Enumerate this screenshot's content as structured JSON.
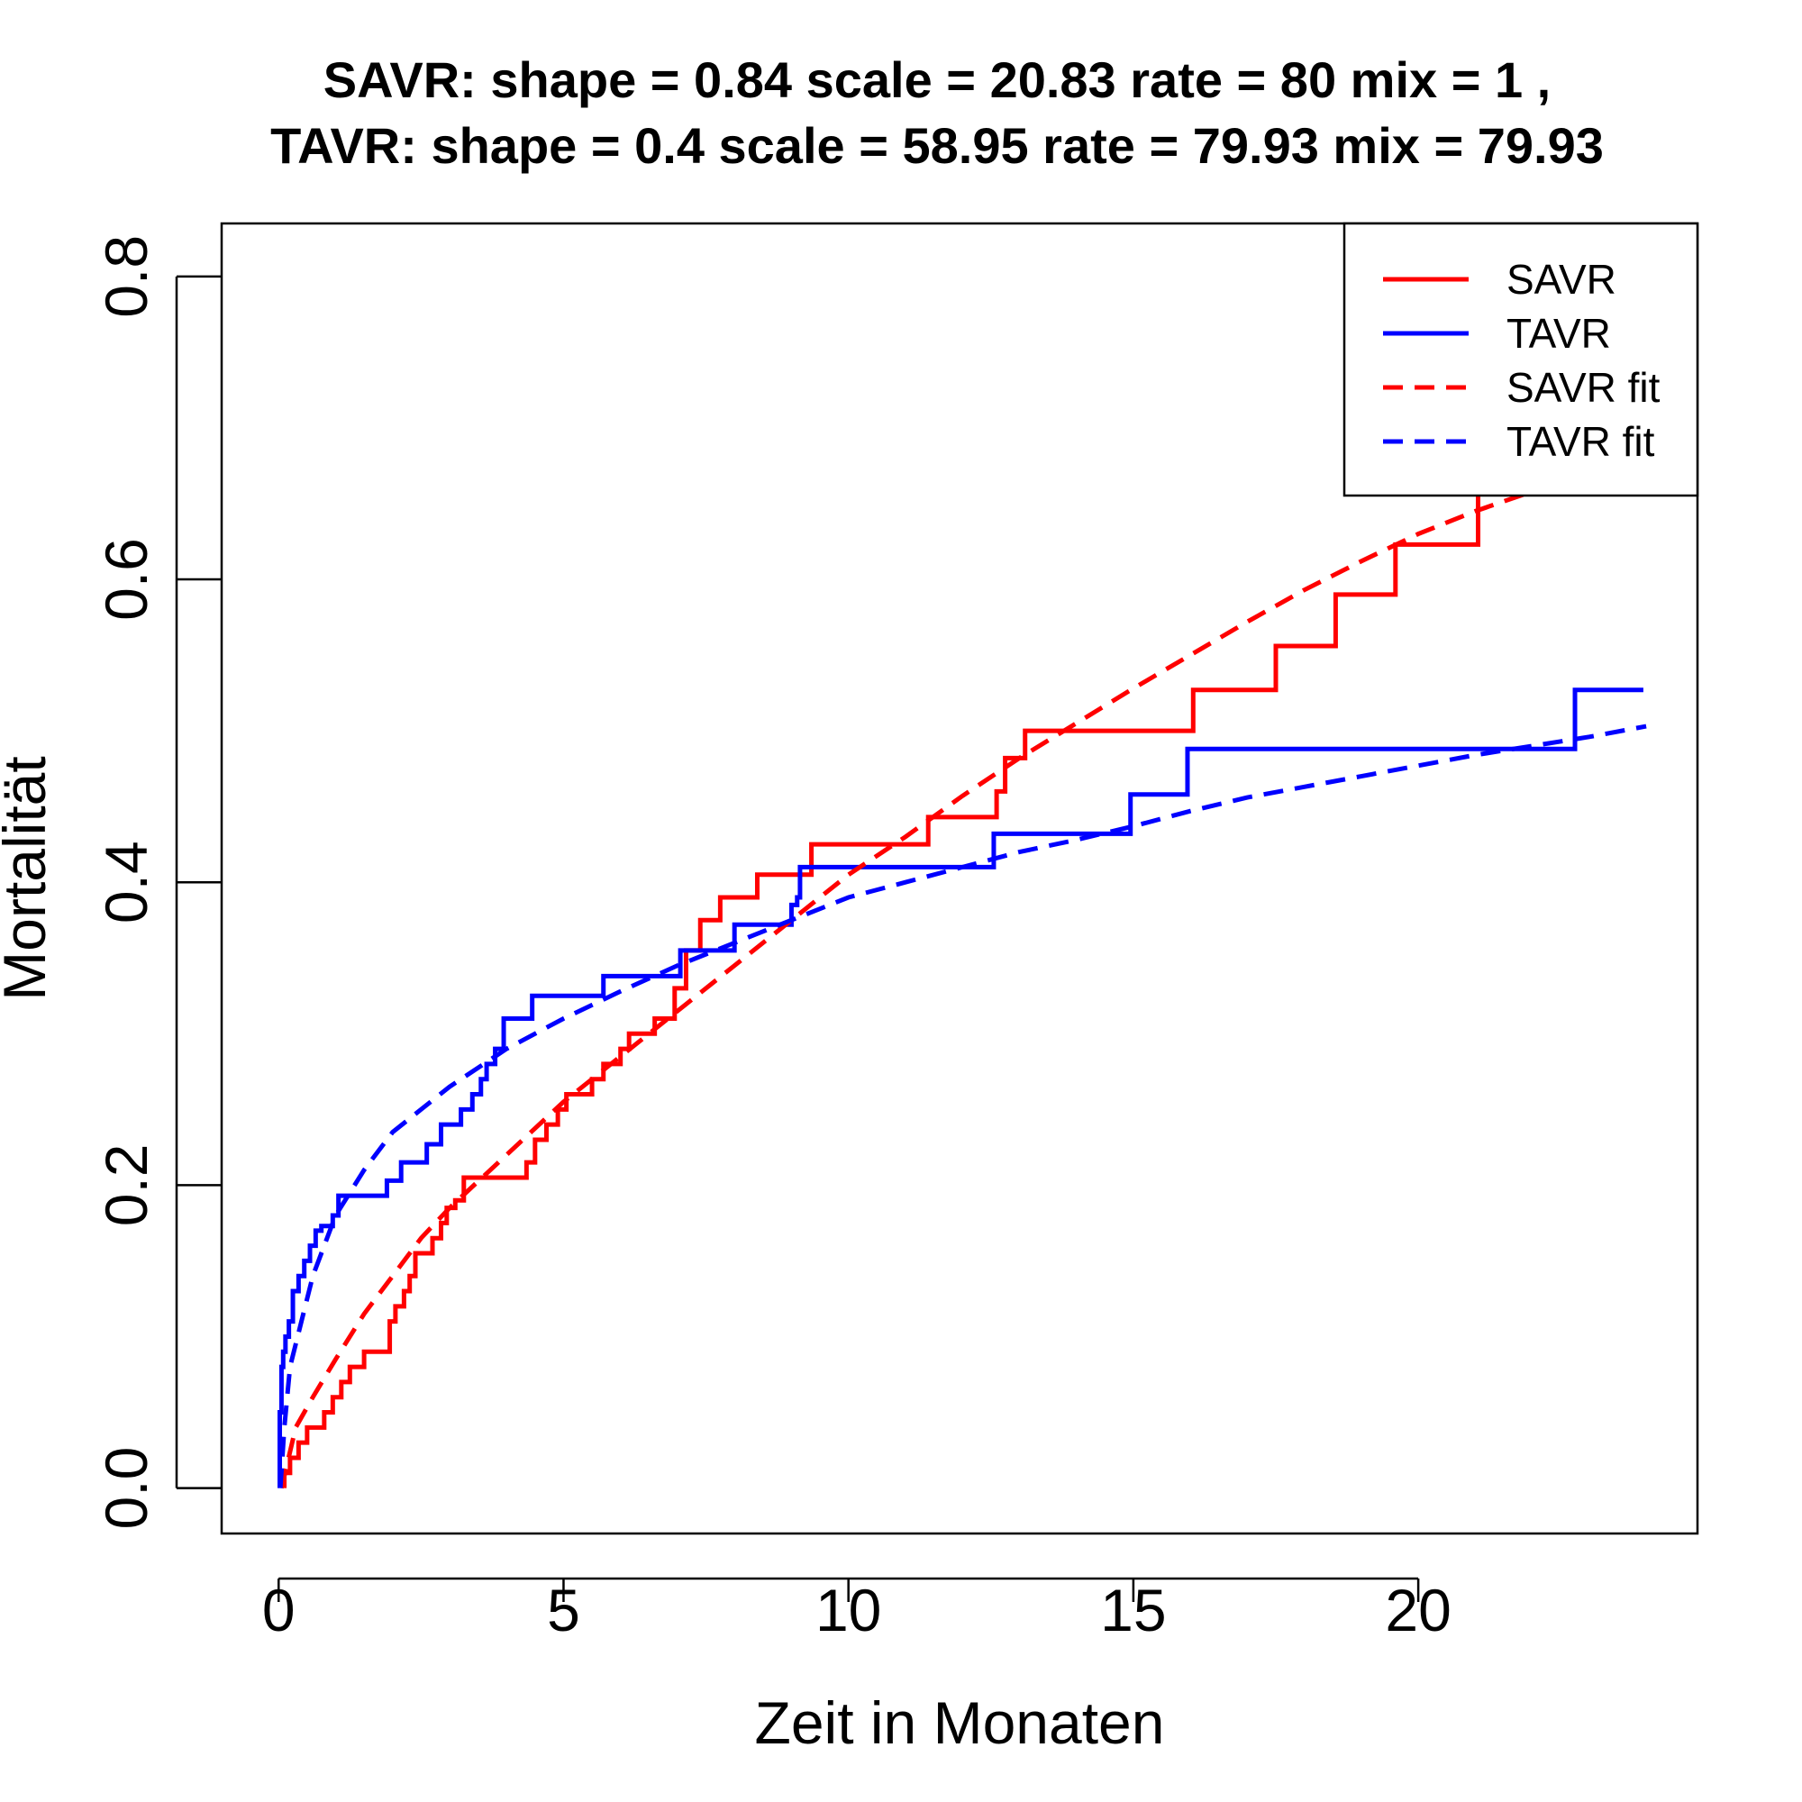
{
  "chart_data": {
    "type": "line",
    "title_line1": "SAVR:  shape =  0.84   scale =  20.83   rate =  80   mix =  1 ,",
    "title_line2": "TAVR:  shape =  0.4   scale =  58.95   rate =  79.93   mix =  79.93",
    "xlabel": "Zeit in Monaten",
    "ylabel": "Mortalität",
    "xlim": [
      -1.0,
      24.9
    ],
    "ylim": [
      -0.03,
      0.835
    ],
    "xticks": [
      0,
      5,
      10,
      15,
      20
    ],
    "xtick_labels": [
      "0",
      "5",
      "10",
      "15",
      "20"
    ],
    "yticks": [
      0.0,
      0.2,
      0.4,
      0.6,
      0.8
    ],
    "ytick_labels": [
      "0.0",
      "0.2",
      "0.4",
      "0.6",
      "0.8"
    ],
    "legend": {
      "position": "top-right",
      "entries": [
        {
          "label": "SAVR",
          "color": "#ff0000",
          "style": "solid"
        },
        {
          "label": "TAVR",
          "color": "#0000ff",
          "style": "solid"
        },
        {
          "label": "SAVR fit",
          "color": "#ff0000",
          "style": "dashed"
        },
        {
          "label": "TAVR fit",
          "color": "#0000ff",
          "style": "dashed"
        }
      ]
    },
    "series": [
      {
        "name": "SAVR",
        "color": "#ff0000",
        "style": "step",
        "x": [
          0.1,
          0.2,
          0.35,
          0.5,
          0.6,
          0.8,
          0.95,
          1.1,
          1.25,
          1.4,
          1.5,
          1.95,
          2.05,
          2.2,
          2.3,
          2.4,
          2.55,
          2.7,
          2.85,
          2.95,
          3.1,
          3.25,
          4.2,
          4.35,
          4.5,
          4.7,
          4.9,
          5.05,
          5.5,
          5.7,
          6.0,
          6.15,
          6.6,
          6.95,
          7.15,
          7.4,
          7.75,
          8.4,
          9.35,
          11.4,
          12.6,
          12.75,
          13.1,
          16.05,
          17.5,
          18.55,
          19.6,
          20.95,
          21.05
        ],
        "y": [
          0.01,
          0.02,
          0.03,
          0.04,
          0.04,
          0.05,
          0.06,
          0.07,
          0.08,
          0.08,
          0.09,
          0.11,
          0.12,
          0.13,
          0.14,
          0.155,
          0.155,
          0.165,
          0.175,
          0.185,
          0.19,
          0.205,
          0.205,
          0.215,
          0.23,
          0.24,
          0.25,
          0.26,
          0.27,
          0.28,
          0.29,
          0.3,
          0.31,
          0.33,
          0.355,
          0.375,
          0.39,
          0.405,
          0.425,
          0.443,
          0.46,
          0.482,
          0.5,
          0.527,
          0.556,
          0.59,
          0.623,
          0.623,
          0.662
        ]
      },
      {
        "name": "TAVR",
        "color": "#0000ff",
        "style": "step",
        "x": [
          0.02,
          0.05,
          0.08,
          0.12,
          0.18,
          0.25,
          0.35,
          0.45,
          0.55,
          0.65,
          0.75,
          0.95,
          1.05,
          1.9,
          2.15,
          2.6,
          2.85,
          3.2,
          3.4,
          3.55,
          3.65,
          3.8,
          3.95,
          4.45,
          5.7,
          7.05,
          8.0,
          8.55,
          9.0,
          9.1,
          9.15,
          12.55,
          14.95,
          15.95,
          22.75,
          23.95
        ],
        "y": [
          0.05,
          0.08,
          0.09,
          0.1,
          0.11,
          0.13,
          0.14,
          0.15,
          0.16,
          0.17,
          0.173,
          0.18,
          0.193,
          0.203,
          0.215,
          0.227,
          0.24,
          0.25,
          0.26,
          0.27,
          0.28,
          0.29,
          0.31,
          0.325,
          0.338,
          0.355,
          0.372,
          0.372,
          0.385,
          0.39,
          0.41,
          0.432,
          0.458,
          0.488,
          0.527,
          0.527
        ]
      },
      {
        "name": "SAVR fit",
        "color": "#ff0000",
        "style": "dashed",
        "x": [
          0.05,
          0.3,
          0.6,
          1.0,
          1.5,
          2.0,
          2.5,
          3.0,
          4.0,
          5.0,
          6.0,
          7.0,
          8.0,
          9.0,
          10.0,
          11.0,
          12.0,
          13.0,
          14.0,
          15.0,
          16.0,
          17.0,
          18.0,
          19.0,
          20.0,
          21.0,
          22.0,
          22.8
        ],
        "y": [
          0.0,
          0.04,
          0.06,
          0.085,
          0.115,
          0.14,
          0.165,
          0.185,
          0.22,
          0.255,
          0.285,
          0.315,
          0.345,
          0.375,
          0.405,
          0.43,
          0.457,
          0.482,
          0.505,
          0.528,
          0.55,
          0.572,
          0.593,
          0.612,
          0.63,
          0.645,
          0.658,
          0.66
        ]
      },
      {
        "name": "TAVR fit",
        "color": "#0000ff",
        "style": "dashed",
        "x": [
          0.03,
          0.1,
          0.2,
          0.4,
          0.6,
          0.8,
          1.0,
          1.5,
          2.0,
          2.5,
          3.0,
          4.0,
          5.0,
          6.0,
          7.0,
          8.0,
          9.0,
          10.0,
          11.0,
          12.0,
          13.0,
          14.0,
          15.0,
          16.0,
          17.0,
          18.0,
          19.0,
          20.0,
          21.0,
          22.0,
          23.0,
          24.0
        ],
        "y": [
          0.0,
          0.04,
          0.08,
          0.11,
          0.14,
          0.16,
          0.18,
          0.21,
          0.235,
          0.25,
          0.265,
          0.29,
          0.31,
          0.328,
          0.345,
          0.36,
          0.375,
          0.39,
          0.4,
          0.41,
          0.42,
          0.428,
          0.437,
          0.447,
          0.456,
          0.463,
          0.47,
          0.477,
          0.484,
          0.49,
          0.496,
          0.503
        ]
      }
    ]
  }
}
